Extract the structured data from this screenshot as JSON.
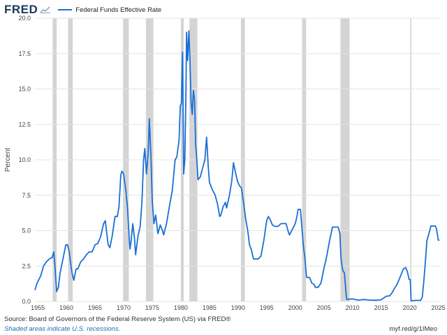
{
  "header": {
    "logo_text": "FRED",
    "logo_icon": "chart-line-icon"
  },
  "footer": {
    "source": "Source: Board of Governors of the Federal Reserve System (US) via FRED®",
    "note": "Shaded areas indicate U.S. recessions.",
    "url": "myf.red/g/1IMeo"
  },
  "colors": {
    "series": "#1a6fd6",
    "recession": "#d4d4d4",
    "grid": "#e4e4e4",
    "logo": "#1a3a5c"
  },
  "chart_data": {
    "type": "line",
    "title": "",
    "ylabel": "Percent",
    "xlim": [
      1954.5,
      2025.3
    ],
    "ylim": [
      0,
      20
    ],
    "grid": true,
    "legend_position": "top-left",
    "x_ticks": [
      1955,
      1960,
      1965,
      1970,
      1975,
      1980,
      1985,
      1990,
      1995,
      2000,
      2005,
      2010,
      2015,
      2020,
      2025
    ],
    "x_tick_labels": [
      "1955",
      "1960",
      "1965",
      "1970",
      "1975",
      "1980",
      "1985",
      "1990",
      "1995",
      "2000",
      "2005",
      "2010",
      "2015",
      "2020",
      "2025"
    ],
    "y_ticks": [
      0,
      2.5,
      5,
      7.5,
      10,
      12.5,
      15,
      17.5,
      20
    ],
    "y_tick_labels": [
      "0.0",
      "2.5",
      "5.0",
      "7.5",
      "10.0",
      "12.5",
      "15.0",
      "17.5",
      "20.0"
    ],
    "recessions": [
      [
        1957.6,
        1958.3
      ],
      [
        1960.3,
        1961.1
      ],
      [
        1969.9,
        1970.9
      ],
      [
        1973.9,
        1975.2
      ],
      [
        1980.0,
        1980.5
      ],
      [
        1981.5,
        1982.9
      ],
      [
        1990.5,
        1991.2
      ],
      [
        2001.2,
        2001.9
      ],
      [
        2007.9,
        2009.5
      ],
      [
        2020.1,
        2020.3
      ]
    ],
    "series": [
      {
        "name": "Federal Funds Effective Rate",
        "points": [
          [
            1954.5,
            0.8
          ],
          [
            1954.8,
            1.2
          ],
          [
            1955.0,
            1.4
          ],
          [
            1955.5,
            1.8
          ],
          [
            1956.0,
            2.5
          ],
          [
            1956.5,
            2.8
          ],
          [
            1957.0,
            3.0
          ],
          [
            1957.5,
            3.1
          ],
          [
            1957.8,
            3.5
          ],
          [
            1958.0,
            2.5
          ],
          [
            1958.3,
            0.7
          ],
          [
            1958.6,
            1.0
          ],
          [
            1958.9,
            2.0
          ],
          [
            1959.3,
            2.8
          ],
          [
            1959.7,
            3.6
          ],
          [
            1959.9,
            4.0
          ],
          [
            1960.2,
            4.0
          ],
          [
            1960.5,
            3.5
          ],
          [
            1960.8,
            2.5
          ],
          [
            1961.0,
            2.0
          ],
          [
            1961.3,
            1.5
          ],
          [
            1961.7,
            2.3
          ],
          [
            1962.0,
            2.3
          ],
          [
            1962.5,
            2.8
          ],
          [
            1963.0,
            3.0
          ],
          [
            1963.5,
            3.3
          ],
          [
            1964.0,
            3.5
          ],
          [
            1964.5,
            3.5
          ],
          [
            1965.0,
            4.0
          ],
          [
            1965.5,
            4.1
          ],
          [
            1966.0,
            4.6
          ],
          [
            1966.5,
            5.5
          ],
          [
            1966.8,
            5.7
          ],
          [
            1967.0,
            5.0
          ],
          [
            1967.3,
            4.0
          ],
          [
            1967.6,
            3.8
          ],
          [
            1968.0,
            4.6
          ],
          [
            1968.5,
            6.0
          ],
          [
            1968.9,
            6.0
          ],
          [
            1969.2,
            6.7
          ],
          [
            1969.5,
            8.9
          ],
          [
            1969.7,
            9.2
          ],
          [
            1970.0,
            9.0
          ],
          [
            1970.4,
            7.8
          ],
          [
            1970.7,
            6.5
          ],
          [
            1970.9,
            5.0
          ],
          [
            1971.1,
            3.7
          ],
          [
            1971.3,
            4.2
          ],
          [
            1971.6,
            5.5
          ],
          [
            1971.9,
            4.5
          ],
          [
            1972.1,
            3.3
          ],
          [
            1972.5,
            4.6
          ],
          [
            1972.9,
            5.3
          ],
          [
            1973.2,
            7.0
          ],
          [
            1973.5,
            10.0
          ],
          [
            1973.7,
            10.8
          ],
          [
            1974.0,
            9.0
          ],
          [
            1974.3,
            10.5
          ],
          [
            1974.5,
            12.9
          ],
          [
            1974.8,
            10.0
          ],
          [
            1975.0,
            7.2
          ],
          [
            1975.3,
            5.5
          ],
          [
            1975.6,
            6.1
          ],
          [
            1976.0,
            4.8
          ],
          [
            1976.4,
            5.4
          ],
          [
            1976.8,
            5.0
          ],
          [
            1977.0,
            4.7
          ],
          [
            1977.5,
            5.5
          ],
          [
            1978.0,
            6.7
          ],
          [
            1978.5,
            7.8
          ],
          [
            1979.0,
            10.0
          ],
          [
            1979.3,
            10.2
          ],
          [
            1979.7,
            11.4
          ],
          [
            1979.9,
            13.8
          ],
          [
            1980.1,
            14.0
          ],
          [
            1980.3,
            17.6
          ],
          [
            1980.5,
            9.0
          ],
          [
            1980.7,
            10.0
          ],
          [
            1980.9,
            15.0
          ],
          [
            1981.0,
            19.0
          ],
          [
            1981.2,
            17.0
          ],
          [
            1981.4,
            19.1
          ],
          [
            1981.6,
            17.0
          ],
          [
            1981.8,
            14.0
          ],
          [
            1982.0,
            13.2
          ],
          [
            1982.2,
            14.9
          ],
          [
            1982.4,
            14.2
          ],
          [
            1982.6,
            11.0
          ],
          [
            1982.8,
            10.0
          ],
          [
            1983.0,
            8.6
          ],
          [
            1983.4,
            8.8
          ],
          [
            1983.8,
            9.4
          ],
          [
            1984.2,
            10.0
          ],
          [
            1984.5,
            11.6
          ],
          [
            1984.8,
            9.5
          ],
          [
            1985.0,
            8.4
          ],
          [
            1985.5,
            7.9
          ],
          [
            1986.0,
            7.5
          ],
          [
            1986.4,
            6.9
          ],
          [
            1986.8,
            6.0
          ],
          [
            1987.0,
            6.1
          ],
          [
            1987.4,
            6.7
          ],
          [
            1987.8,
            7.0
          ],
          [
            1988.0,
            6.6
          ],
          [
            1988.5,
            7.5
          ],
          [
            1988.9,
            8.5
          ],
          [
            1989.2,
            9.8
          ],
          [
            1989.5,
            9.2
          ],
          [
            1989.9,
            8.5
          ],
          [
            1990.2,
            8.2
          ],
          [
            1990.6,
            8.0
          ],
          [
            1991.0,
            6.9
          ],
          [
            1991.3,
            5.9
          ],
          [
            1991.7,
            5.0
          ],
          [
            1992.0,
            4.0
          ],
          [
            1992.3,
            3.7
          ],
          [
            1992.7,
            3.0
          ],
          [
            1993.0,
            3.0
          ],
          [
            1993.5,
            3.0
          ],
          [
            1994.0,
            3.2
          ],
          [
            1994.5,
            4.3
          ],
          [
            1995.0,
            5.7
          ],
          [
            1995.3,
            6.0
          ],
          [
            1995.6,
            5.8
          ],
          [
            1996.0,
            5.4
          ],
          [
            1996.5,
            5.3
          ],
          [
            1997.0,
            5.3
          ],
          [
            1997.5,
            5.5
          ],
          [
            1998.0,
            5.5
          ],
          [
            1998.4,
            5.5
          ],
          [
            1998.8,
            4.9
          ],
          [
            1999.0,
            4.7
          ],
          [
            1999.5,
            5.1
          ],
          [
            2000.0,
            5.5
          ],
          [
            2000.3,
            6.0
          ],
          [
            2000.5,
            6.5
          ],
          [
            2000.9,
            6.5
          ],
          [
            2001.1,
            5.5
          ],
          [
            2001.4,
            4.0
          ],
          [
            2001.7,
            3.0
          ],
          [
            2001.9,
            2.0
          ],
          [
            2002.0,
            1.7
          ],
          [
            2002.5,
            1.7
          ],
          [
            2002.9,
            1.3
          ],
          [
            2003.3,
            1.2
          ],
          [
            2003.5,
            1.0
          ],
          [
            2004.0,
            1.0
          ],
          [
            2004.5,
            1.3
          ],
          [
            2005.0,
            2.3
          ],
          [
            2005.5,
            3.2
          ],
          [
            2006.0,
            4.3
          ],
          [
            2006.5,
            5.25
          ],
          [
            2007.0,
            5.25
          ],
          [
            2007.5,
            5.25
          ],
          [
            2007.8,
            4.8
          ],
          [
            2008.0,
            3.0
          ],
          [
            2008.3,
            2.2
          ],
          [
            2008.6,
            2.0
          ],
          [
            2008.9,
            0.5
          ],
          [
            2009.0,
            0.15
          ],
          [
            2010.0,
            0.18
          ],
          [
            2011.0,
            0.1
          ],
          [
            2012.0,
            0.14
          ],
          [
            2013.0,
            0.1
          ],
          [
            2014.0,
            0.09
          ],
          [
            2015.0,
            0.12
          ],
          [
            2015.9,
            0.37
          ],
          [
            2016.5,
            0.4
          ],
          [
            2016.9,
            0.6
          ],
          [
            2017.3,
            0.9
          ],
          [
            2017.7,
            1.15
          ],
          [
            2018.0,
            1.4
          ],
          [
            2018.5,
            1.9
          ],
          [
            2018.9,
            2.3
          ],
          [
            2019.3,
            2.4
          ],
          [
            2019.6,
            2.1
          ],
          [
            2019.9,
            1.55
          ],
          [
            2020.1,
            1.55
          ],
          [
            2020.25,
            0.05
          ],
          [
            2021.0,
            0.08
          ],
          [
            2021.9,
            0.08
          ],
          [
            2022.2,
            0.3
          ],
          [
            2022.5,
            1.6
          ],
          [
            2022.8,
            3.1
          ],
          [
            2023.0,
            4.3
          ],
          [
            2023.5,
            5.0
          ],
          [
            2023.7,
            5.33
          ],
          [
            2024.5,
            5.33
          ],
          [
            2024.7,
            5.1
          ],
          [
            2024.9,
            4.6
          ],
          [
            2025.0,
            4.33
          ],
          [
            2025.2,
            4.33
          ]
        ]
      }
    ]
  }
}
